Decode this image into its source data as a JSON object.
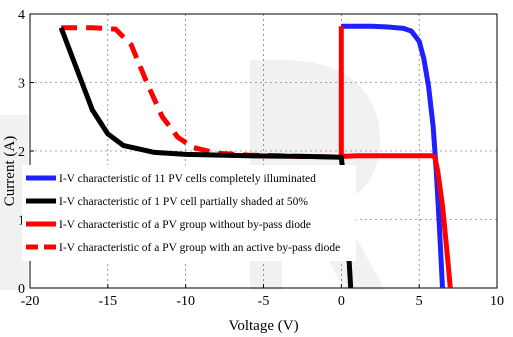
{
  "chart_data": {
    "type": "line",
    "xlabel": "Voltage (V)",
    "ylabel": "Current (A)",
    "xlim": [
      -20,
      10
    ],
    "ylim": [
      0,
      4
    ],
    "xticks": [
      -20,
      -15,
      -10,
      -5,
      0,
      5,
      10
    ],
    "yticks": [
      0,
      1,
      2,
      3,
      4
    ],
    "grid": "dashed",
    "legend_position": "lower-left",
    "series": [
      {
        "name": "I-V characteristic of 11 PV cells completely illuminated",
        "color": "#1f1fff",
        "dash": "solid",
        "x": [
          0,
          0.0,
          1,
          2,
          3,
          4,
          4.5,
          5.0,
          5.3,
          5.6,
          5.9,
          6.1,
          6.3,
          6.5
        ],
        "y": [
          3.82,
          3.82,
          3.82,
          3.82,
          3.81,
          3.79,
          3.75,
          3.6,
          3.35,
          2.95,
          2.35,
          1.7,
          0.9,
          0.0
        ]
      },
      {
        "name": "I-V characteristic of 1 PV cell partially shaded at 50%",
        "color": "#000000",
        "dash": "solid",
        "x": [
          -18,
          -17,
          -16,
          -15,
          -14,
          -12,
          -10,
          -6,
          -2,
          0,
          0.2,
          0.35,
          0.5,
          0.6
        ],
        "y": [
          3.8,
          3.2,
          2.6,
          2.25,
          2.08,
          1.98,
          1.95,
          1.93,
          1.92,
          1.91,
          1.5,
          0.9,
          0.4,
          0.0
        ]
      },
      {
        "name": "I-V characteristic of  a PV group without by-pass diode",
        "color": "#ff0000",
        "dash": "solid",
        "x": [
          0,
          0,
          0,
          1,
          2,
          3,
          4,
          5,
          5.5,
          5.8,
          6.0,
          6.2,
          6.5,
          6.8,
          7.0
        ],
        "y": [
          3.82,
          1.91,
          1.92,
          1.93,
          1.93,
          1.93,
          1.93,
          1.93,
          1.93,
          1.93,
          1.92,
          1.7,
          1.2,
          0.5,
          0.0
        ]
      },
      {
        "name": "I-V characteristic of a PV group with an active by-pass diode",
        "color": "#ff0000",
        "dash": "dashed",
        "x": [
          -18,
          -16,
          -14.5,
          -13.5,
          -12.5,
          -11.5,
          -10.5,
          -9.5,
          -8,
          -6,
          -4,
          -2,
          0
        ],
        "y": [
          3.8,
          3.8,
          3.78,
          3.55,
          3.0,
          2.5,
          2.2,
          2.05,
          1.97,
          1.94,
          1.93,
          1.92,
          1.91
        ]
      }
    ]
  }
}
